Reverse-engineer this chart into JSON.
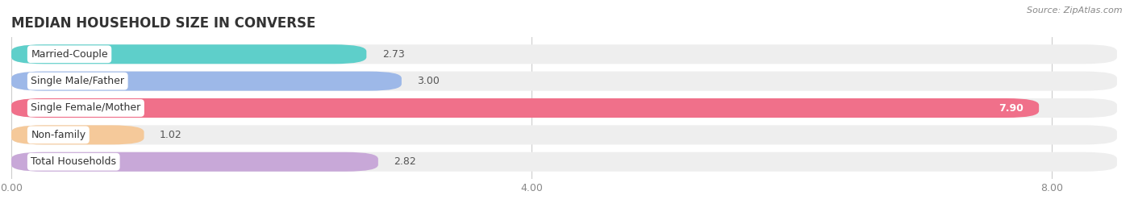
{
  "title": "MEDIAN HOUSEHOLD SIZE IN CONVERSE",
  "source": "Source: ZipAtlas.com",
  "categories": [
    "Married-Couple",
    "Single Male/Father",
    "Single Female/Mother",
    "Non-family",
    "Total Households"
  ],
  "values": [
    2.73,
    3.0,
    7.9,
    1.02,
    2.82
  ],
  "bar_colors": [
    "#5ECFCA",
    "#9DB8E8",
    "#F0708A",
    "#F5C99A",
    "#C8A8D8"
  ],
  "bar_bg_colors": [
    "#EEEEEE",
    "#EEEEEE",
    "#EEEEEE",
    "#EEEEEE",
    "#EEEEEE"
  ],
  "value_labels": [
    "2.73",
    "3.00",
    "7.90",
    "1.02",
    "2.82"
  ],
  "value_inside": [
    false,
    false,
    true,
    false,
    false
  ],
  "xlim_max": 8.5,
  "xticks": [
    0.0,
    4.0,
    8.0
  ],
  "xtick_labels": [
    "0.00",
    "4.00",
    "8.00"
  ],
  "background_color": "#ffffff",
  "bar_height": 0.72,
  "bar_gap": 0.1,
  "title_fontsize": 12,
  "label_fontsize": 9,
  "value_fontsize": 9,
  "tick_fontsize": 9,
  "source_fontsize": 8
}
